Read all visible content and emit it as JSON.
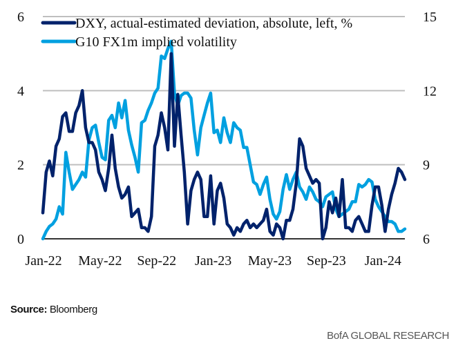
{
  "chart_data": {
    "type": "line",
    "title": "",
    "xlabel": "",
    "ylabel_left": "",
    "ylabel_right": "",
    "x_start": "Jan-22",
    "x_end": "Feb-24",
    "x_ticks": [
      "Jan-22",
      "May-22",
      "Sep-22",
      "Jan-23",
      "May-23",
      "Sep-23",
      "Jan-24"
    ],
    "y_left": {
      "range": [
        0,
        6
      ],
      "ticks": [
        "0",
        "2",
        "4",
        "6"
      ]
    },
    "y_right": {
      "range": [
        6,
        15
      ],
      "ticks": [
        "6",
        "9",
        "12",
        "15"
      ]
    },
    "grid": true,
    "legend_position": "top-left",
    "colors": {
      "dxy": "#00226B",
      "vol": "#00A0E0",
      "grid": "#BFBFBF",
      "axis": "#333333"
    },
    "series": [
      {
        "name": "DXY, actual-estimated deviation, absolute, left, %",
        "axis": "left",
        "color": "#00226B",
        "values": [
          0.7,
          1.8,
          2.1,
          1.7,
          2.5,
          2.7,
          3.3,
          3.4,
          2.9,
          2.9,
          3.4,
          3.6,
          4.0,
          3.0,
          2.6,
          2.6,
          2.4,
          1.8,
          1.6,
          1.3,
          1.9,
          2.8,
          1.9,
          1.4,
          1.1,
          1.2,
          1.4,
          0.6,
          0.7,
          0.8,
          0.3,
          0.3,
          0.2,
          0.6,
          2.5,
          2.8,
          3.4,
          3.0,
          2.4,
          5.0,
          2.5,
          3.9,
          2.8,
          1.8,
          0.4,
          1.3,
          1.6,
          1.8,
          1.6,
          0.6,
          0.6,
          1.7,
          0.4,
          1.3,
          1.5,
          1.1,
          0.4,
          0.3,
          0.1,
          0.3,
          0.2,
          0.4,
          0.5,
          0.3,
          0.4,
          0.3,
          0.4,
          0.5,
          0.8,
          0.2,
          0.1,
          0.4,
          0.3,
          0.0,
          0.5,
          0.5,
          0.8,
          1.5,
          2.7,
          2.5,
          1.9,
          1.7,
          1.5,
          1.6,
          1.5,
          0.0,
          0.3,
          1.0,
          0.7,
          1.1,
          0.6,
          1.6,
          0.3,
          0.3,
          0.2,
          0.5,
          0.6,
          0.4,
          0.2,
          0.2,
          0.9,
          1.4,
          1.4,
          0.9,
          0.2,
          0.8,
          1.2,
          1.5,
          1.9,
          1.8,
          1.6
        ]
      },
      {
        "name": "G10 FX1m implied volatility",
        "axis": "right",
        "color": "#00A0E0",
        "values": [
          6.0,
          6.3,
          6.5,
          6.6,
          6.8,
          7.3,
          7.0,
          9.5,
          8.7,
          8.0,
          8.2,
          8.4,
          8.7,
          8.5,
          10.0,
          10.5,
          10.6,
          9.9,
          9.3,
          9.2,
          10.8,
          11.0,
          10.5,
          11.5,
          10.9,
          11.6,
          10.4,
          9.8,
          9.3,
          8.7,
          10.7,
          10.8,
          11.2,
          11.5,
          11.9,
          12.1,
          13.4,
          13.3,
          13.7,
          14.0,
          11.9,
          11.4,
          11.8,
          11.9,
          11.9,
          11.7,
          10.4,
          9.4,
          10.5,
          11.0,
          11.5,
          11.9,
          10.3,
          10.4,
          9.9,
          10.9,
          10.3,
          9.9,
          10.7,
          10.5,
          10.4,
          9.7,
          9.7,
          9.0,
          8.3,
          8.2,
          7.8,
          8.2,
          8.5,
          7.6,
          7.0,
          6.8,
          7.1,
          8.0,
          8.6,
          8.0,
          8.4,
          8.7,
          8.1,
          7.9,
          7.6,
          8.1,
          7.9,
          7.6,
          7.5,
          7.3,
          7.7,
          7.8,
          7.9,
          7.2,
          6.9,
          7.0,
          7.1,
          7.2,
          7.5,
          7.5,
          8.2,
          8.1,
          8.2,
          8.4,
          8.3,
          7.6,
          7.3,
          7.1,
          6.9,
          6.7,
          6.7,
          6.6,
          6.3,
          6.3,
          6.4
        ]
      }
    ]
  },
  "footer": {
    "source_label": "Source:",
    "source_value": " Bloomberg",
    "brand": "BofA GLOBAL RESEARCH"
  }
}
